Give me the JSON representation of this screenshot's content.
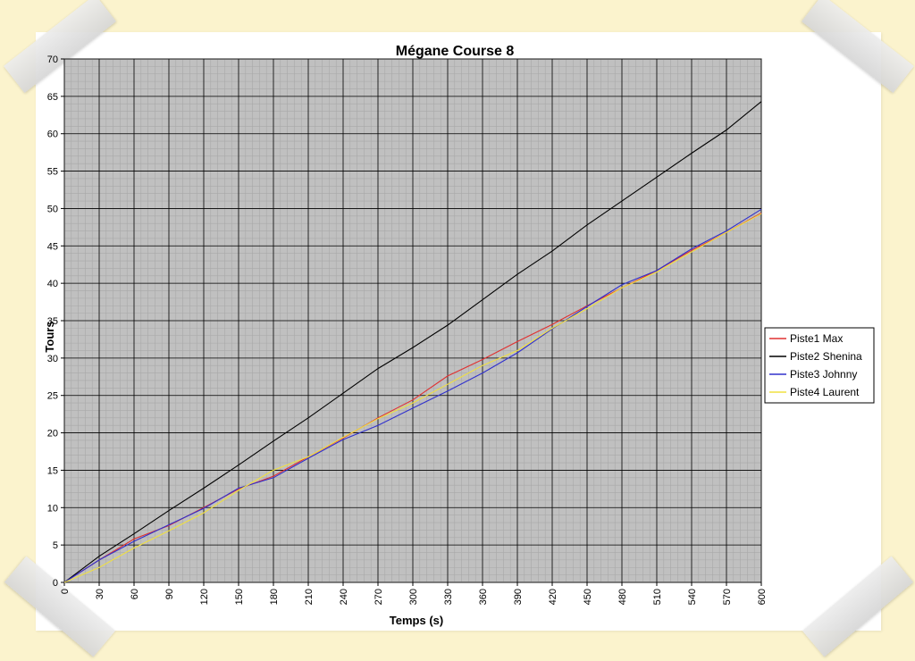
{
  "chart_data": {
    "type": "line",
    "title": "Mégane Course 8",
    "xlabel": "Temps (s)",
    "ylabel": "Tours",
    "xlim": [
      0,
      600
    ],
    "ylim": [
      0,
      70
    ],
    "xticks": [
      0,
      30,
      60,
      90,
      120,
      150,
      180,
      210,
      240,
      270,
      300,
      330,
      360,
      390,
      420,
      450,
      480,
      510,
      540,
      570,
      600
    ],
    "yticks": [
      0,
      5,
      10,
      15,
      20,
      25,
      30,
      35,
      40,
      45,
      50,
      55,
      60,
      65,
      70
    ],
    "grid": true,
    "legend_position": "right",
    "plot_background": "#c0c0c0",
    "series": [
      {
        "name": "Piste1 Max",
        "color": "#e03030",
        "x": [
          0,
          30,
          60,
          90,
          120,
          150,
          180,
          210,
          240,
          270,
          300,
          330,
          360,
          390,
          420,
          450,
          480,
          510,
          540,
          570,
          600
        ],
        "y": [
          0,
          3.0,
          5.8,
          7.6,
          10.0,
          12.5,
          14.2,
          16.8,
          19.3,
          22.0,
          24.4,
          27.6,
          29.8,
          32.2,
          34.5,
          37.0,
          39.4,
          41.7,
          44.4,
          46.8,
          49.4
        ]
      },
      {
        "name": "Piste2 Shenina",
        "color": "#000000",
        "x": [
          0,
          30,
          60,
          90,
          120,
          150,
          180,
          210,
          240,
          270,
          300,
          330,
          360,
          390,
          420,
          450,
          480,
          510,
          540,
          570,
          600
        ],
        "y": [
          0,
          3.5,
          6.5,
          9.6,
          12.6,
          15.7,
          18.9,
          22.0,
          25.3,
          28.6,
          31.4,
          34.4,
          37.8,
          41.2,
          44.3,
          47.8,
          51.0,
          54.2,
          57.4,
          60.5,
          64.3
        ]
      },
      {
        "name": "Piste3 Johnny",
        "color": "#3030cc",
        "x": [
          0,
          30,
          60,
          90,
          120,
          150,
          180,
          210,
          240,
          270,
          300,
          330,
          360,
          390,
          420,
          450,
          480,
          510,
          540,
          570,
          600
        ],
        "y": [
          0,
          3.0,
          5.5,
          7.7,
          9.9,
          12.6,
          14.0,
          16.6,
          19.1,
          21.0,
          23.3,
          25.6,
          28.0,
          30.7,
          33.9,
          36.9,
          39.8,
          41.7,
          44.6,
          47.0,
          49.9
        ]
      },
      {
        "name": "Piste4 Laurent",
        "color": "#f0e040",
        "x": [
          0,
          30,
          60,
          90,
          120,
          150,
          180,
          210,
          240,
          270,
          300,
          330,
          360,
          390,
          420,
          450,
          480,
          510,
          540,
          570,
          600
        ],
        "y": [
          0,
          2.0,
          4.6,
          6.9,
          9.3,
          12.3,
          15.0,
          16.8,
          19.4,
          21.9,
          24.0,
          26.5,
          29.0,
          31.0,
          34.0,
          36.6,
          39.4,
          41.5,
          44.2,
          46.8,
          49.3
        ]
      }
    ]
  }
}
